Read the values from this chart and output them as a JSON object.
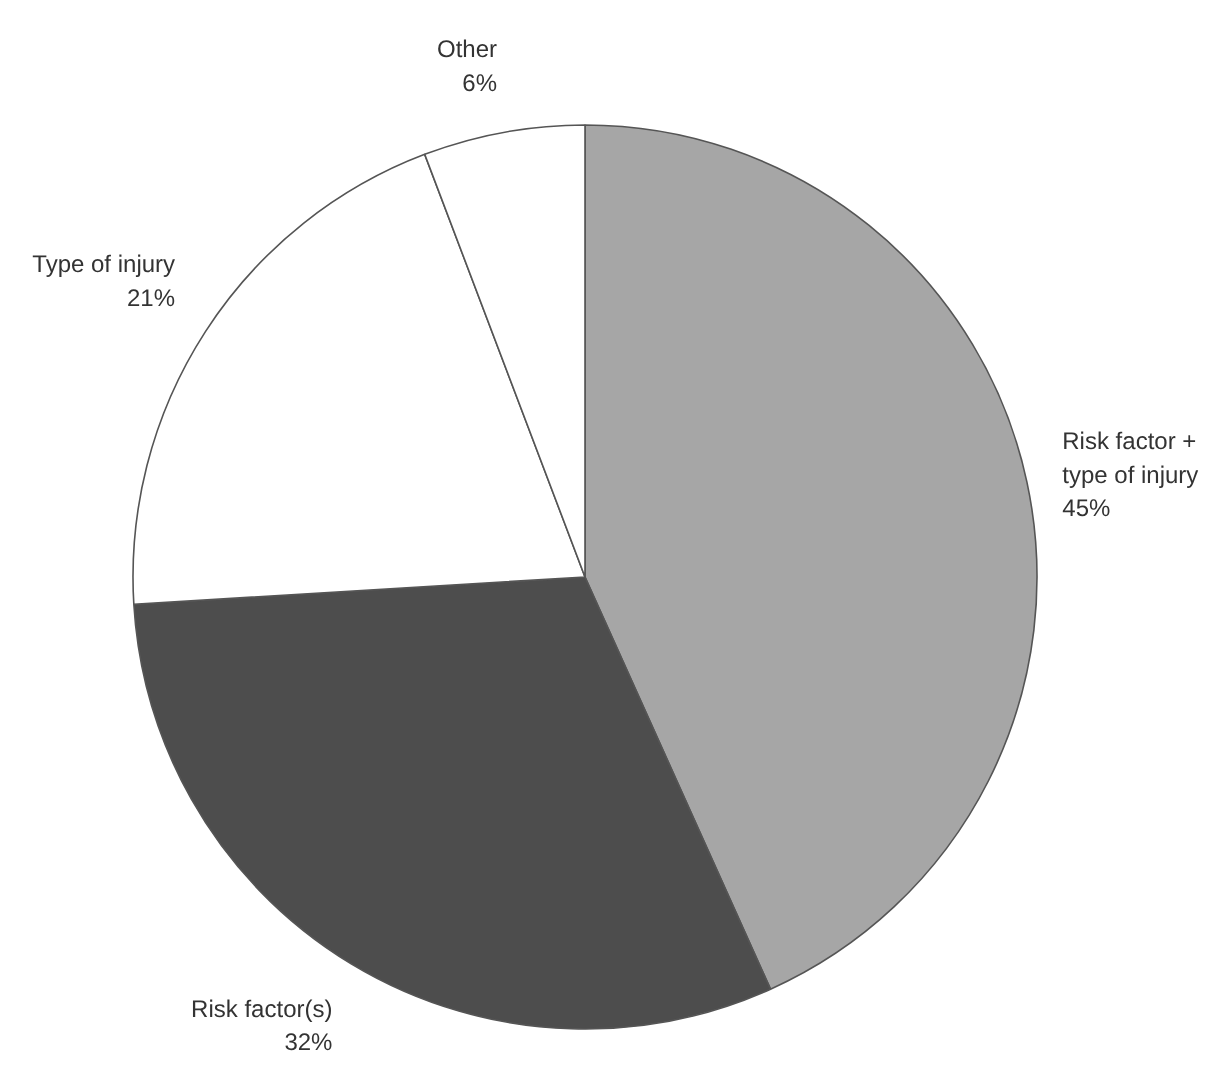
{
  "chart_data": {
    "type": "pie",
    "categories": [
      "Risk factor + type of injury",
      "Risk factor(s)",
      "Type of injury",
      "Other"
    ],
    "values": [
      45,
      32,
      21,
      6
    ],
    "value_labels": [
      "45%",
      "32%",
      "21%",
      "6%"
    ],
    "colors": [
      "#a6a6a6",
      "#4d4d4d",
      "#ffffff",
      "#ffffff"
    ],
    "legend": false
  }
}
